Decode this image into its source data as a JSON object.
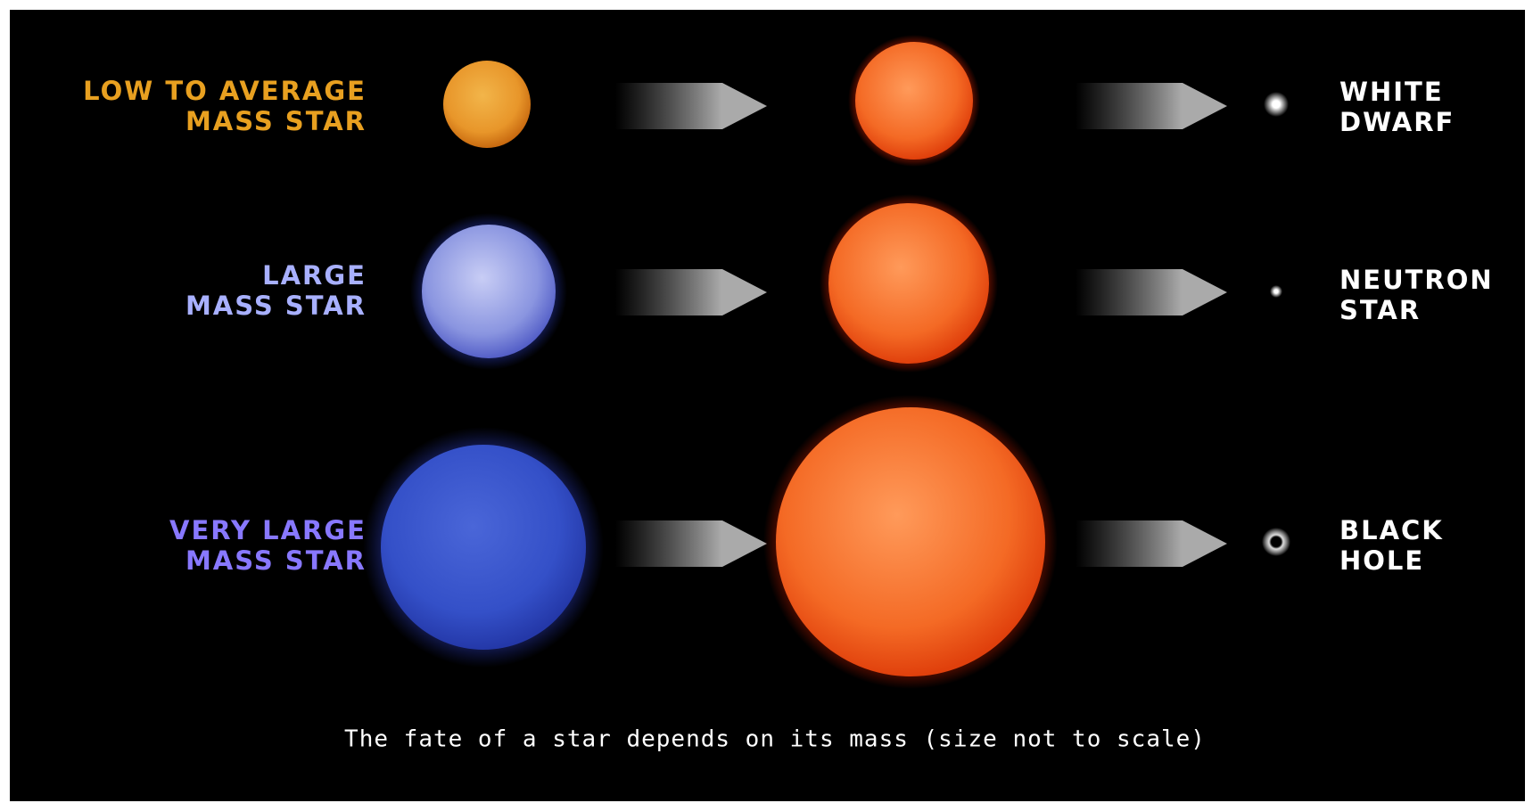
{
  "rows": [
    {
      "start": [
        "LOW TO AVERAGE",
        "MASS STAR"
      ],
      "end": [
        "WHITE",
        "DWARF"
      ]
    },
    {
      "start": [
        "LARGE",
        "MASS STAR"
      ],
      "end": [
        "NEUTRON",
        "STAR"
      ]
    },
    {
      "start": [
        "VERY LARGE",
        "MASS STAR"
      ],
      "end": [
        "BLACK",
        "HOLE"
      ]
    }
  ],
  "caption": "The fate of a star depends on its mass (size not to scale)"
}
